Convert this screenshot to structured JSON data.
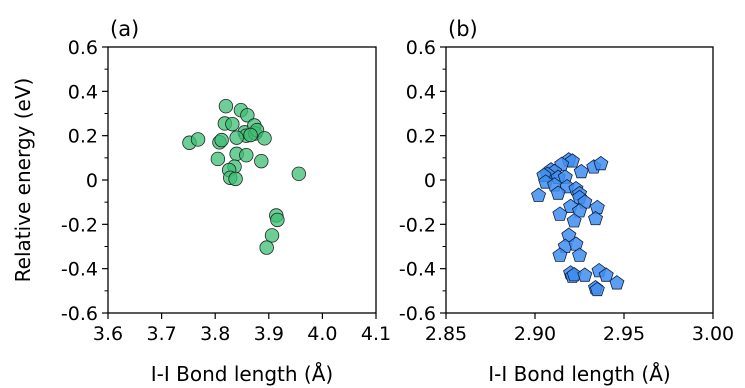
{
  "chart_data": [
    {
      "type": "scatter",
      "panel_label": "(a)",
      "xlabel": "I-I Bond length (Å)",
      "ylabel": "Relative energy (eV)",
      "xlim": [
        3.6,
        4.1
      ],
      "ylim": [
        -0.6,
        0.6
      ],
      "xticks": [
        "3.6",
        "3.7",
        "3.8",
        "3.9",
        "4.0",
        "4.1"
      ],
      "yticks": [
        "0.6",
        "0.4",
        "0.2",
        "0",
        "-0.2",
        "-0.4",
        "-0.6"
      ],
      "marker": "circle",
      "color": "#3dbd74",
      "points": [
        [
          3.752,
          0.168
        ],
        [
          3.768,
          0.183
        ],
        [
          3.82,
          0.333
        ],
        [
          3.848,
          0.315
        ],
        [
          3.86,
          0.292
        ],
        [
          3.808,
          0.17
        ],
        [
          3.812,
          0.18
        ],
        [
          3.818,
          0.255
        ],
        [
          3.832,
          0.252
        ],
        [
          3.855,
          0.215
        ],
        [
          3.858,
          0.2
        ],
        [
          3.873,
          0.246
        ],
        [
          3.875,
          0.21
        ],
        [
          3.878,
          0.225
        ],
        [
          3.866,
          0.203
        ],
        [
          3.84,
          0.191
        ],
        [
          3.892,
          0.188
        ],
        [
          3.805,
          0.095
        ],
        [
          3.84,
          0.118
        ],
        [
          3.858,
          0.112
        ],
        [
          3.836,
          0.06
        ],
        [
          3.826,
          0.045
        ],
        [
          3.828,
          0.01
        ],
        [
          3.838,
          0.005
        ],
        [
          3.886,
          0.085
        ],
        [
          3.956,
          0.028
        ],
        [
          3.914,
          -0.16
        ],
        [
          3.916,
          -0.18
        ],
        [
          3.906,
          -0.25
        ],
        [
          3.896,
          -0.305
        ]
      ]
    },
    {
      "type": "scatter",
      "panel_label": "(b)",
      "xlabel": "I-I Bond length (Å)",
      "ylabel": "",
      "xlim": [
        2.85,
        3.0
      ],
      "ylim": [
        -0.6,
        0.6
      ],
      "xticks": [
        "2.85",
        "2.90",
        "2.95",
        "3.00"
      ],
      "yticks": [
        "0.6",
        "0.4",
        "0.2",
        "0",
        "-0.2",
        "-0.4",
        "-0.6"
      ],
      "marker": "pentagon",
      "color": "#3f8ef0",
      "points": [
        [
          2.919,
          0.09
        ],
        [
          2.921,
          0.085
        ],
        [
          2.915,
          0.07
        ],
        [
          2.909,
          0.045
        ],
        [
          2.911,
          0.038
        ],
        [
          2.907,
          0.025
        ],
        [
          2.905,
          0.02
        ],
        [
          2.913,
          0.011
        ],
        [
          2.917,
          0.012
        ],
        [
          2.926,
          0.037
        ],
        [
          2.933,
          0.058
        ],
        [
          2.937,
          0.073
        ],
        [
          2.906,
          -0.01
        ],
        [
          2.911,
          -0.023
        ],
        [
          2.918,
          -0.031
        ],
        [
          2.923,
          -0.04
        ],
        [
          2.913,
          -0.06
        ],
        [
          2.925,
          -0.062
        ],
        [
          2.902,
          -0.07
        ],
        [
          2.925,
          -0.08
        ],
        [
          2.928,
          -0.1
        ],
        [
          2.935,
          -0.125
        ],
        [
          2.92,
          -0.12
        ],
        [
          2.925,
          -0.14
        ],
        [
          2.914,
          -0.155
        ],
        [
          2.934,
          -0.175
        ],
        [
          2.922,
          -0.185
        ],
        [
          2.919,
          -0.25
        ],
        [
          2.917,
          -0.3
        ],
        [
          2.923,
          -0.29
        ],
        [
          2.925,
          -0.34
        ],
        [
          2.914,
          -0.34
        ],
        [
          2.92,
          -0.42
        ],
        [
          2.921,
          -0.435
        ],
        [
          2.922,
          -0.428
        ],
        [
          2.928,
          -0.43
        ],
        [
          2.936,
          -0.41
        ],
        [
          2.94,
          -0.43
        ],
        [
          2.946,
          -0.465
        ],
        [
          2.934,
          -0.487
        ],
        [
          2.935,
          -0.495
        ]
      ]
    }
  ]
}
